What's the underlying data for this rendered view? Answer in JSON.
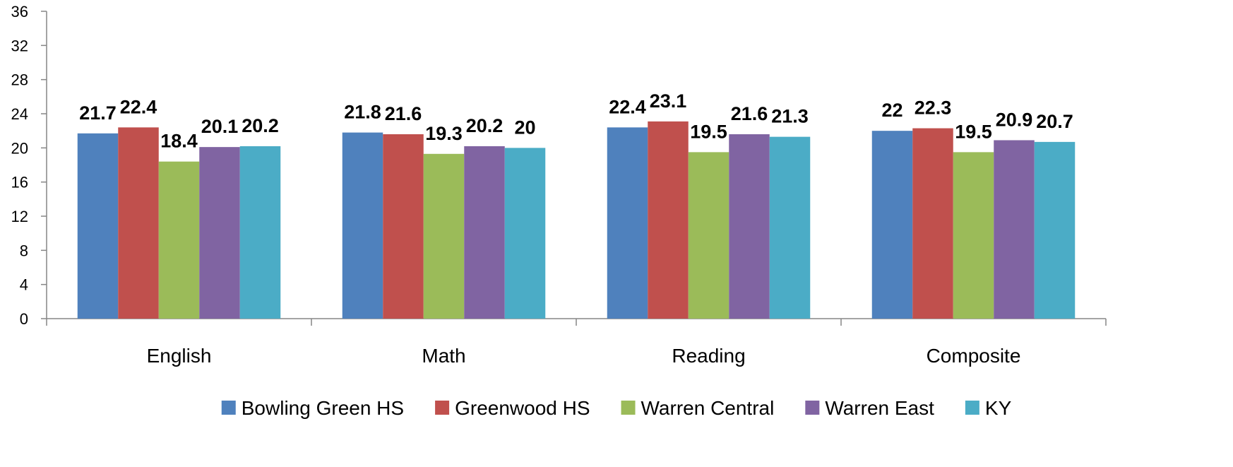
{
  "chart_data": {
    "type": "bar",
    "title": "",
    "xlabel": "",
    "ylabel": "",
    "ylim": [
      0,
      36
    ],
    "yticks": [
      0,
      4,
      8,
      12,
      16,
      20,
      24,
      28,
      32,
      36
    ],
    "yticks_text": [
      "0",
      "4",
      "8",
      "12",
      "16",
      "20",
      "24",
      "28",
      "32",
      "36"
    ],
    "grid": false,
    "legend_position": "bottom",
    "categories": [
      "English",
      "Math",
      "Reading",
      "Composite"
    ],
    "series": [
      {
        "name": "Bowling Green HS",
        "color": "#4F81BD",
        "values": [
          21.7,
          21.8,
          22.4,
          22
        ],
        "labels": [
          "21.7",
          "21.8",
          "22.4",
          "22"
        ]
      },
      {
        "name": "Greenwood HS",
        "color": "#C0504D",
        "values": [
          22.4,
          21.6,
          23.1,
          22.3
        ],
        "labels": [
          "22.4",
          "21.6",
          "23.1",
          "22.3"
        ]
      },
      {
        "name": "Warren Central",
        "color": "#9BBB59",
        "values": [
          18.4,
          19.3,
          19.5,
          19.5
        ],
        "labels": [
          "18.4",
          "19.3",
          "19.5",
          "19.5"
        ]
      },
      {
        "name": "Warren East",
        "color": "#8064A2",
        "values": [
          20.1,
          20.2,
          21.6,
          20.9
        ],
        "labels": [
          "20.1",
          "20.2",
          "21.6",
          "20.9"
        ]
      },
      {
        "name": "KY",
        "color": "#4BACC6",
        "values": [
          20.2,
          20,
          21.3,
          20.7
        ],
        "labels": [
          "20.2",
          "20",
          "21.3",
          "20.7"
        ]
      }
    ]
  }
}
